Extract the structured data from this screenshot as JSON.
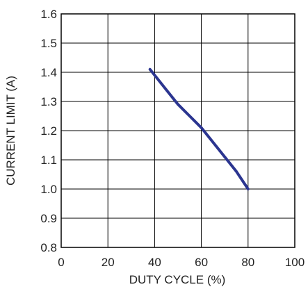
{
  "chart_data": {
    "type": "line",
    "title": "",
    "xlabel": "DUTY CYCLE (%)",
    "ylabel": "CURRENT LIMIT (A)",
    "xlim": [
      0,
      100
    ],
    "ylim": [
      0.8,
      1.6
    ],
    "xticks": [
      "0",
      "20",
      "40",
      "60",
      "80",
      "100"
    ],
    "yticks": [
      "0.8",
      "0.9",
      "1.0",
      "1.1",
      "1.2",
      "1.3",
      "1.4",
      "1.5",
      "1.6"
    ],
    "grid": true,
    "colors": {
      "line": "#2b3590",
      "grid": "#000000",
      "text": "#222222"
    },
    "series": [
      {
        "x": [
          38,
          45,
          50,
          55,
          60,
          65,
          70,
          75,
          80
        ],
        "y": [
          1.41,
          1.34,
          1.29,
          1.25,
          1.21,
          1.16,
          1.11,
          1.06,
          1.0
        ]
      }
    ]
  }
}
